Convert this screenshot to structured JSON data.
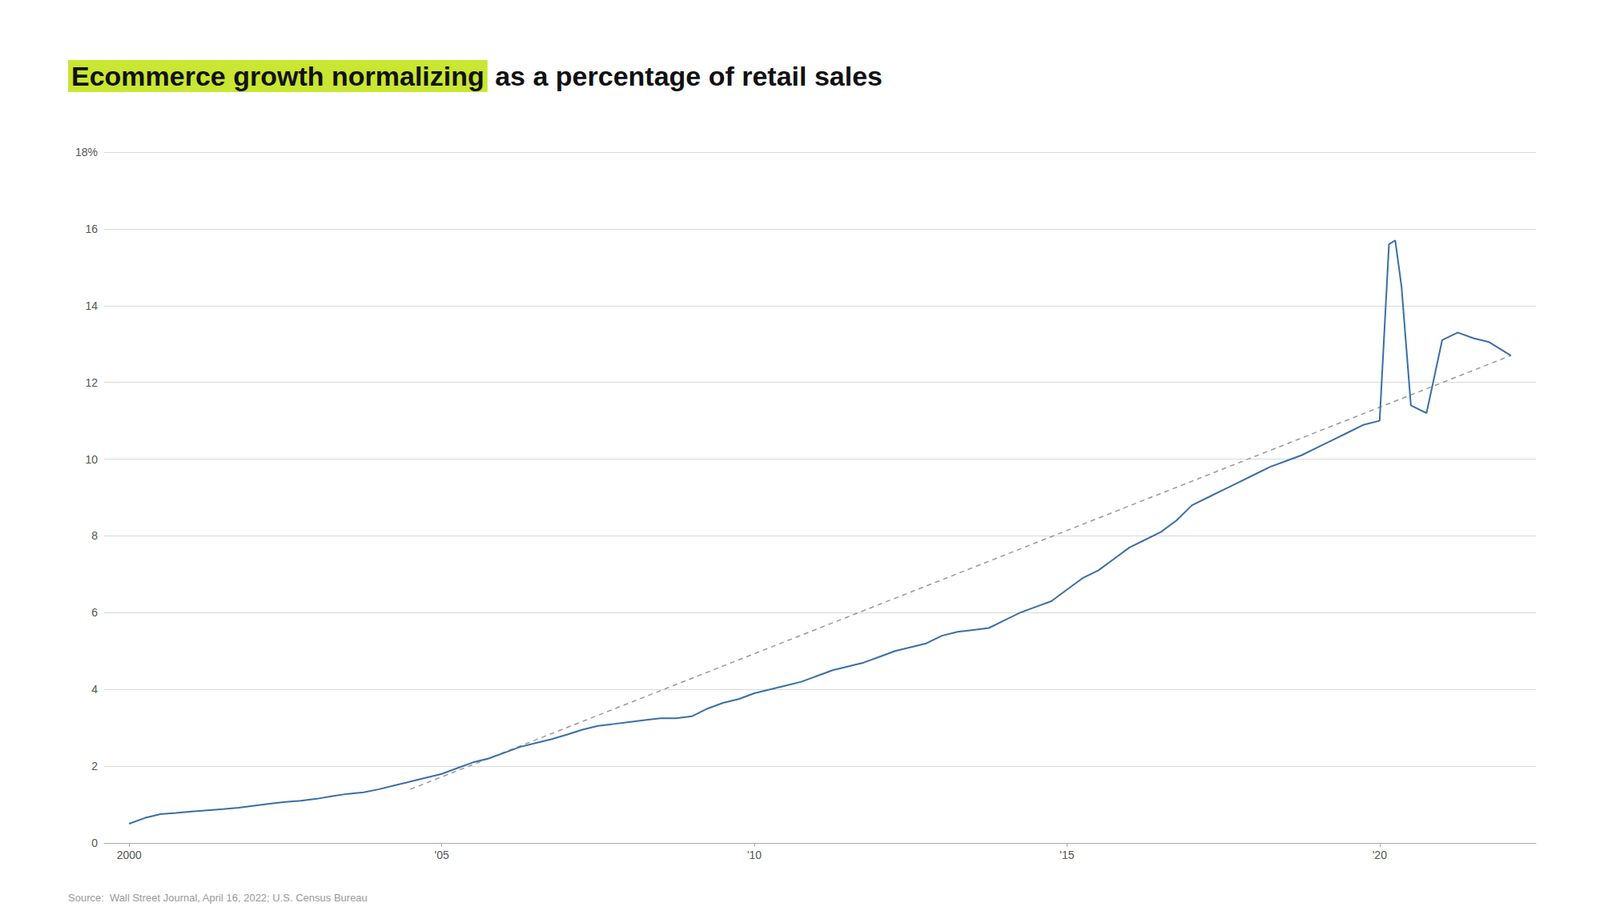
{
  "chart_data": {
    "type": "line",
    "title": "Ecommerce growth normalizing",
    "subtitle": "as a percentage of retail sales",
    "annotations": [
      "Source:  Wall Street Journal, April 16, 2022; U.S. Census Bureau"
    ],
    "series": [
      {
        "type": "line",
        "color": "#3a6ea5",
        "line_style": "solid",
        "x": [
          2000.0,
          2000.25,
          2000.5,
          2000.75,
          2001.0,
          2001.25,
          2001.5,
          2001.75,
          2002.0,
          2002.25,
          2002.5,
          2002.75,
          2003.0,
          2003.25,
          2003.5,
          2003.75,
          2004.0,
          2004.25,
          2004.5,
          2004.75,
          2005.0,
          2005.25,
          2005.5,
          2005.75,
          2006.0,
          2006.25,
          2006.5,
          2006.75,
          2007.0,
          2007.25,
          2007.5,
          2007.75,
          2008.0,
          2008.25,
          2008.5,
          2008.75,
          2009.0,
          2009.25,
          2009.5,
          2009.75,
          2010.0,
          2010.25,
          2010.5,
          2010.75,
          2011.0,
          2011.25,
          2011.5,
          2011.75,
          2012.0,
          2012.25,
          2012.5,
          2012.75,
          2013.0,
          2013.25,
          2013.5,
          2013.75,
          2014.0,
          2014.25,
          2014.5,
          2014.75,
          2015.0,
          2015.25,
          2015.5,
          2015.75,
          2016.0,
          2016.25,
          2016.5,
          2016.75,
          2017.0,
          2017.25,
          2017.5,
          2017.75,
          2018.0,
          2018.25,
          2018.5,
          2018.75,
          2019.0,
          2019.25,
          2019.5,
          2019.75,
          2020.0,
          2020.15,
          2020.25,
          2020.35,
          2020.5,
          2020.75,
          2021.0,
          2021.25,
          2021.5,
          2021.75,
          2022.0,
          2022.1
        ],
        "values": [
          0.5,
          0.65,
          0.75,
          0.78,
          0.82,
          0.85,
          0.88,
          0.92,
          0.97,
          1.02,
          1.07,
          1.1,
          1.15,
          1.22,
          1.28,
          1.32,
          1.4,
          1.5,
          1.6,
          1.7,
          1.8,
          1.95,
          2.1,
          2.2,
          2.35,
          2.5,
          2.6,
          2.7,
          2.82,
          2.95,
          3.05,
          3.1,
          3.15,
          3.2,
          3.25,
          3.25,
          3.3,
          3.5,
          3.65,
          3.75,
          3.9,
          4.0,
          4.1,
          4.2,
          4.35,
          4.5,
          4.6,
          4.7,
          4.85,
          5.0,
          5.1,
          5.2,
          5.4,
          5.5,
          5.55,
          5.6,
          5.8,
          6.0,
          6.15,
          6.3,
          6.6,
          6.9,
          7.1,
          7.4,
          7.7,
          7.9,
          8.1,
          8.4,
          8.8,
          9.0,
          9.2,
          9.4,
          9.6,
          9.8,
          9.95,
          10.1,
          10.3,
          10.5,
          10.7,
          10.9,
          11.0,
          15.6,
          15.7,
          14.5,
          11.4,
          11.2,
          13.1,
          13.3,
          13.15,
          13.05,
          12.8,
          12.7
        ]
      },
      {
        "type": "line",
        "color": "#999999",
        "line_style": "dashed",
        "x": [
          2004.5,
          2022.1
        ],
        "values": [
          1.4,
          12.7
        ]
      }
    ],
    "xlim": [
      1999.6,
      2022.5
    ],
    "xticks": [
      2000,
      {
        "value": 2005,
        "label": "'05"
      },
      {
        "value": 2010,
        "label": "'10"
      },
      {
        "value": 2015,
        "label": "'15"
      },
      {
        "value": 2020,
        "label": "'20"
      }
    ],
    "ylim": [
      0,
      18
    ],
    "yticks": [
      0,
      2,
      4,
      6,
      8,
      10,
      12,
      14,
      16,
      {
        "value": 18,
        "label": "18%"
      }
    ],
    "grid": true
  }
}
